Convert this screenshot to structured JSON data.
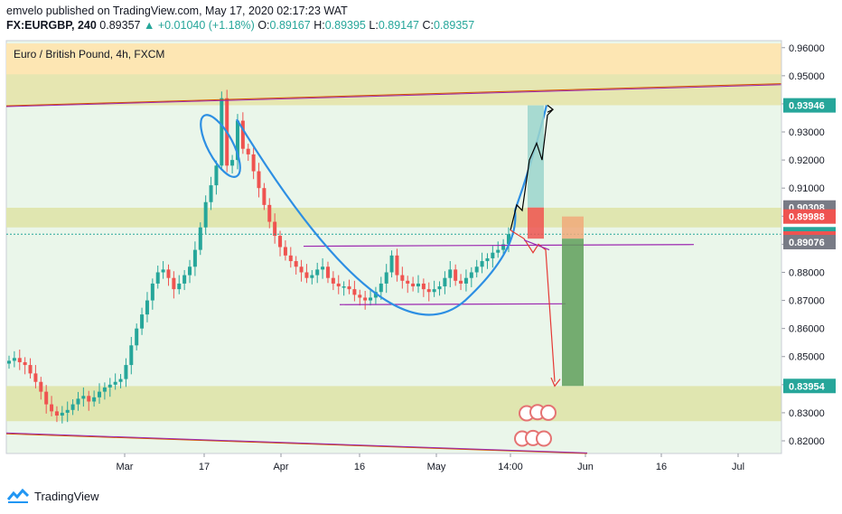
{
  "header": {
    "line1": "emvelo published on TradingView.com, May 17, 2020 02:17:23 WAT",
    "symbol": "FX:EURGBP, 240",
    "price": "0.89357",
    "change": "▲ +0.01040 (+1.18%)",
    "o_label": "O:",
    "o_val": "0.89167",
    "h_label": "H:",
    "h_val": "0.89395",
    "l_label": "L:",
    "l_val": "0.89147",
    "c_label": "C:",
    "c_val": "0.89357"
  },
  "footer": {
    "brand": "TradingView"
  },
  "colors": {
    "bull": "#26a69a",
    "bear": "#ef5350",
    "zone_orange": "#fde6b3",
    "zone_olive": "#e0e6b0",
    "zone_green": "#d4ecd0",
    "curve_blue": "#2d8fe3",
    "purple": "#9c27b0"
  },
  "chart_data": {
    "type": "candlestick",
    "title": "Euro / British Pound, 4h, FXCM",
    "y_ticks": [
      "0.96000",
      "0.95000",
      "0.94000",
      "0.93000",
      "0.92000",
      "0.91000",
      "0.90000",
      "0.89000",
      "0.88000",
      "0.87000",
      "0.86000",
      "0.85000",
      "0.84000",
      "0.83000",
      "0.82000"
    ],
    "x_ticks": [
      "Mar",
      "17",
      "Apr",
      "16",
      "May",
      "14:00",
      "Jun",
      "16",
      "Jul"
    ],
    "ylim": [
      0.8155,
      0.9625
    ],
    "price_labels": [
      {
        "text": "0.93946",
        "value": 0.93946,
        "bg": "#26a69a"
      },
      {
        "text": "0.90308",
        "value": 0.90308,
        "bg": "#787b86"
      },
      {
        "text": "0.89988",
        "value": 0.89988,
        "bg": "#ef5350"
      },
      {
        "text": "0.89357",
        "value": 0.89357,
        "bg": "#26a69a"
      },
      {
        "text": "0.89205",
        "value": 0.89205,
        "bg": "#ef5350"
      },
      {
        "text": "0.89076",
        "value": 0.89076,
        "bg": "#787b86"
      },
      {
        "text": "0.83954",
        "value": 0.83954,
        "bg": "#26a69a"
      }
    ],
    "series": [
      {
        "name": "EURGBP",
        "values": [
          0.8485,
          0.8495,
          0.848,
          0.847,
          0.844,
          0.841,
          0.8375,
          0.833,
          0.8305,
          0.829,
          0.83,
          0.831,
          0.833,
          0.835,
          0.836,
          0.834,
          0.8355,
          0.8375,
          0.839,
          0.84,
          0.841,
          0.842,
          0.847,
          0.854,
          0.86,
          0.865,
          0.87,
          0.876,
          0.88,
          0.881,
          0.878,
          0.874,
          0.876,
          0.879,
          0.882,
          0.888,
          0.896,
          0.905,
          0.911,
          0.918,
          0.942,
          0.918,
          0.92,
          0.934,
          0.924,
          0.922,
          0.916,
          0.91,
          0.904,
          0.898,
          0.893,
          0.889,
          0.886,
          0.884,
          0.882,
          0.88,
          0.878,
          0.879,
          0.881,
          0.882,
          0.878,
          0.876,
          0.875,
          0.875,
          0.874,
          0.872,
          0.871,
          0.87,
          0.871,
          0.873,
          0.876,
          0.88,
          0.886,
          0.879,
          0.877,
          0.876,
          0.875,
          0.876,
          0.874,
          0.873,
          0.874,
          0.875,
          0.878,
          0.881,
          0.877,
          0.876,
          0.878,
          0.88,
          0.882,
          0.884,
          0.885,
          0.887,
          0.888,
          0.89,
          0.8936
        ]
      }
    ]
  }
}
